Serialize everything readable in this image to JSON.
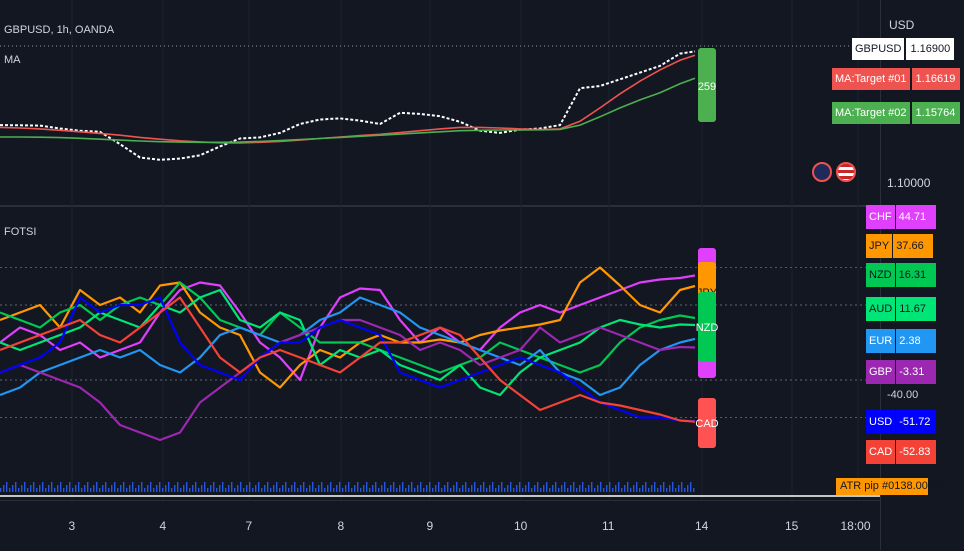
{
  "price_pane": {
    "symbol": "GBPUSD, 1h, OANDA",
    "indicator": "MA",
    "currency": "USD",
    "price_ticks": [
      "1.10000"
    ],
    "labels": [
      {
        "name": "GBPUSD",
        "value": "1.16900",
        "bg": "#ffffff",
        "fg": "#131722"
      },
      {
        "name": "MA:Target #01",
        "value": "1.16619",
        "bg": "#ef5350",
        "fg": "#ffffff"
      },
      {
        "name": "MA:Target #02",
        "value": "1.15764",
        "bg": "#4caf50",
        "fg": "#ffffff"
      }
    ],
    "marker_text": "259"
  },
  "fotsi_pane": {
    "title": "FOTSI",
    "level_tick": "-40.00",
    "labels": [
      {
        "name": "CHF",
        "value": "44.71",
        "bg": "#e040fb",
        "fg": "#ffffff"
      },
      {
        "name": "JPY",
        "value": "37.66",
        "bg": "#ff9800",
        "fg": "#131722"
      },
      {
        "name": "NZD",
        "value": "16.31",
        "bg": "#00c853",
        "fg": "#131722"
      },
      {
        "name": "AUD",
        "value": "11.67",
        "bg": "#00e676",
        "fg": "#131722"
      },
      {
        "name": "EUR",
        "value": "2.38",
        "bg": "#2196f3",
        "fg": "#ffffff"
      },
      {
        "name": "GBP",
        "value": "-3.31",
        "bg": "#9c27b0",
        "fg": "#ffffff"
      },
      {
        "name": "USD",
        "value": "-51.72",
        "bg": "#0000ff",
        "fg": "#ffffff"
      },
      {
        "name": "CAD",
        "value": "-52.83",
        "bg": "#f44336",
        "fg": "#ffffff"
      }
    ],
    "tags": [
      "JPY",
      "NZD",
      "CAD"
    ]
  },
  "atr_pane": {
    "label": "ATR pip #01",
    "value": "38.00000"
  },
  "time_axis": [
    "3",
    "4",
    "7",
    "8",
    "9",
    "10",
    "11",
    "14",
    "15",
    "18:00"
  ],
  "chart_data": [
    {
      "type": "line",
      "title": "GBPUSD, 1h, OANDA",
      "x": [
        0,
        20,
        40,
        60,
        80,
        100,
        120,
        140,
        160,
        180,
        200,
        220,
        240,
        260,
        280,
        300,
        320,
        340,
        360,
        380,
        400,
        420,
        440,
        460,
        480,
        500,
        520,
        540,
        560,
        580,
        600,
        620,
        640,
        660,
        680,
        695
      ],
      "series": [
        {
          "name": "GBPUSD",
          "color": "#ffffff",
          "values": [
            1.1335,
            1.1334,
            1.1333,
            1.132,
            1.131,
            1.1305,
            1.125,
            1.119,
            1.118,
            1.1185,
            1.12,
            1.124,
            1.1275,
            1.128,
            1.13,
            1.134,
            1.136,
            1.1365,
            1.1355,
            1.134,
            1.139,
            1.1385,
            1.1375,
            1.135,
            1.131,
            1.13,
            1.1315,
            1.132,
            1.1335,
            1.15,
            1.151,
            1.154,
            1.157,
            1.16,
            1.1655,
            1.1665
          ]
        },
        {
          "name": "MA:Target #01",
          "color": "#ef5350",
          "values": [
            1.1325,
            1.1322,
            1.1318,
            1.1312,
            1.1305,
            1.1298,
            1.129,
            1.128,
            1.1272,
            1.1265,
            1.126,
            1.1256,
            1.1255,
            1.1258,
            1.1262,
            1.1268,
            1.1275,
            1.1282,
            1.1288,
            1.1294,
            1.1302,
            1.131,
            1.1318,
            1.1325,
            1.1325,
            1.1322,
            1.1318,
            1.1315,
            1.1318,
            1.1352,
            1.1412,
            1.1475,
            1.1532,
            1.1582,
            1.1625,
            1.1648
          ]
        },
        {
          "name": "MA:Target #02",
          "color": "#4caf50",
          "values": [
            1.1282,
            1.1282,
            1.1281,
            1.1279,
            1.1276,
            1.1272,
            1.1268,
            1.1264,
            1.1261,
            1.1259,
            1.1258,
            1.1258,
            1.1259,
            1.1262,
            1.1266,
            1.127,
            1.1275,
            1.128,
            1.1285,
            1.129,
            1.1295,
            1.13,
            1.1305,
            1.131,
            1.1312,
            1.1313,
            1.1313,
            1.1314,
            1.1316,
            1.1335,
            1.1372,
            1.1412,
            1.1448,
            1.148,
            1.152,
            1.1545
          ]
        }
      ]
    },
    {
      "type": "line",
      "title": "FOTSI",
      "x": [
        0,
        20,
        40,
        60,
        80,
        100,
        120,
        140,
        160,
        180,
        200,
        220,
        240,
        260,
        280,
        300,
        320,
        340,
        360,
        380,
        400,
        420,
        440,
        460,
        480,
        500,
        520,
        540,
        560,
        580,
        600,
        620,
        640,
        660,
        680,
        695
      ],
      "series": [
        {
          "name": "CHF",
          "color": "#e040fb",
          "values": [
            0,
            10,
            5,
            -5,
            0,
            -10,
            -5,
            0,
            20,
            35,
            40,
            38,
            20,
            0,
            -10,
            -25,
            10,
            30,
            36,
            35,
            15,
            0,
            10,
            0,
            -5,
            10,
            20,
            25,
            20,
            25,
            30,
            35,
            40,
            42,
            43,
            44.71
          ]
        },
        {
          "name": "JPY",
          "color": "#ff9800",
          "values": [
            15,
            20,
            25,
            10,
            35,
            25,
            30,
            20,
            38,
            40,
            20,
            10,
            5,
            -20,
            -30,
            -15,
            -5,
            -10,
            0,
            5,
            0,
            0,
            2,
            0,
            5,
            8,
            10,
            12,
            15,
            40,
            50,
            38,
            25,
            20,
            35,
            37.66
          ]
        },
        {
          "name": "NZD",
          "color": "#00c853",
          "values": [
            20,
            15,
            10,
            20,
            25,
            15,
            25,
            30,
            25,
            40,
            30,
            15,
            10,
            5,
            20,
            10,
            0,
            0,
            0,
            -5,
            -10,
            -15,
            -20,
            -15,
            -10,
            0,
            -5,
            -10,
            -15,
            -20,
            -15,
            0,
            10,
            15,
            18,
            16.31
          ]
        },
        {
          "name": "AUD",
          "color": "#00e676",
          "values": [
            0,
            -5,
            0,
            5,
            10,
            20,
            15,
            10,
            25,
            20,
            30,
            35,
            15,
            10,
            20,
            15,
            -15,
            -5,
            -10,
            -5,
            -15,
            -20,
            -25,
            -15,
            -30,
            -35,
            -20,
            -10,
            -5,
            0,
            10,
            15,
            12,
            10,
            12,
            11.67
          ]
        },
        {
          "name": "EUR",
          "color": "#2196f3",
          "values": [
            -35,
            -30,
            -20,
            -15,
            -10,
            -5,
            -10,
            -5,
            -15,
            -20,
            -10,
            5,
            10,
            5,
            0,
            5,
            15,
            20,
            30,
            25,
            20,
            10,
            5,
            0,
            -5,
            -10,
            -15,
            -5,
            -20,
            -25,
            -35,
            -30,
            -15,
            -5,
            0,
            2.38
          ]
        },
        {
          "name": "GBP",
          "color": "#9c27b0",
          "values": [
            -20,
            -15,
            -20,
            -25,
            -30,
            -40,
            -55,
            -60,
            -65,
            -60,
            -40,
            -30,
            -20,
            -10,
            0,
            5,
            10,
            15,
            15,
            10,
            5,
            -5,
            0,
            -5,
            -15,
            -10,
            -5,
            10,
            0,
            5,
            10,
            5,
            0,
            -5,
            -3,
            -3.31
          ]
        },
        {
          "name": "USD",
          "color": "#0000ff",
          "values": [
            -20,
            -15,
            -10,
            0,
            30,
            20,
            25,
            25,
            30,
            0,
            -15,
            -20,
            -25,
            -10,
            0,
            0,
            10,
            15,
            10,
            5,
            -20,
            -25,
            -30,
            -25,
            -20,
            -15,
            -10,
            -15,
            -20,
            -30,
            -40,
            -45,
            -50,
            -50,
            -52,
            -51.72
          ]
        },
        {
          "name": "CAD",
          "color": "#f44336",
          "values": [
            -5,
            0,
            5,
            10,
            15,
            5,
            0,
            10,
            20,
            30,
            10,
            -10,
            -20,
            -10,
            -5,
            -10,
            -15,
            -20,
            -10,
            0,
            0,
            5,
            10,
            5,
            -10,
            -25,
            -35,
            -45,
            -40,
            -35,
            -40,
            -42,
            -45,
            -48,
            -52,
            -52.83
          ]
        }
      ]
    }
  ]
}
